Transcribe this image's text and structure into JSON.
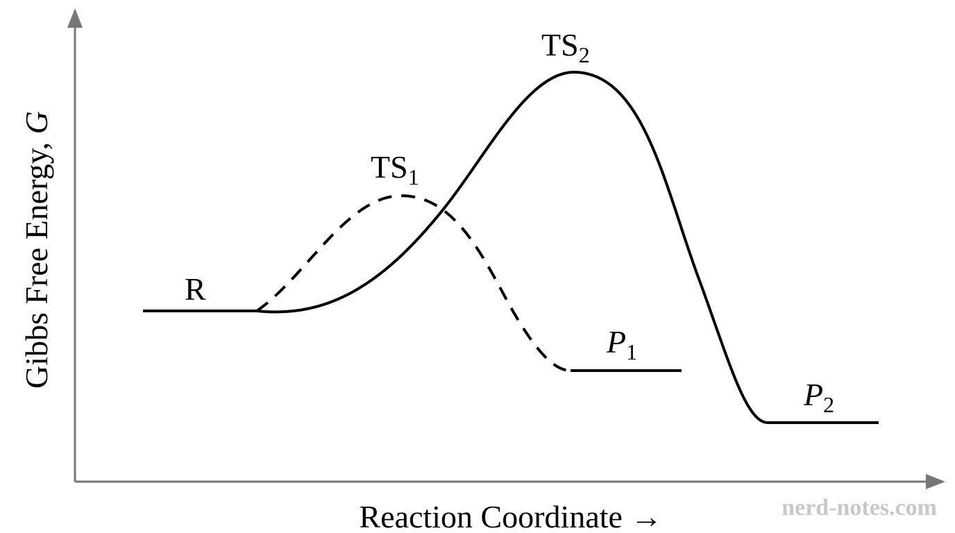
{
  "axes": {
    "y_label_prefix": "Gibbs Free Energy, ",
    "y_label_symbol": "G",
    "x_label": "Reaction Coordinate →",
    "color": "#777777"
  },
  "states": {
    "reactant": {
      "label": "R"
    },
    "ts1": {
      "base": "TS",
      "sub": "1"
    },
    "ts2": {
      "base": "TS",
      "sub": "2"
    },
    "p1": {
      "base": "P",
      "sub": "1"
    },
    "p2": {
      "base": "P",
      "sub": "2"
    }
  },
  "paths": {
    "dashed": {
      "style": "dashed",
      "from": "R",
      "via": "TS1",
      "to": "P1"
    },
    "solid": {
      "style": "solid",
      "from": "R",
      "via": "TS2",
      "to": "P2"
    }
  },
  "watermark": "nerd-notes.com"
}
